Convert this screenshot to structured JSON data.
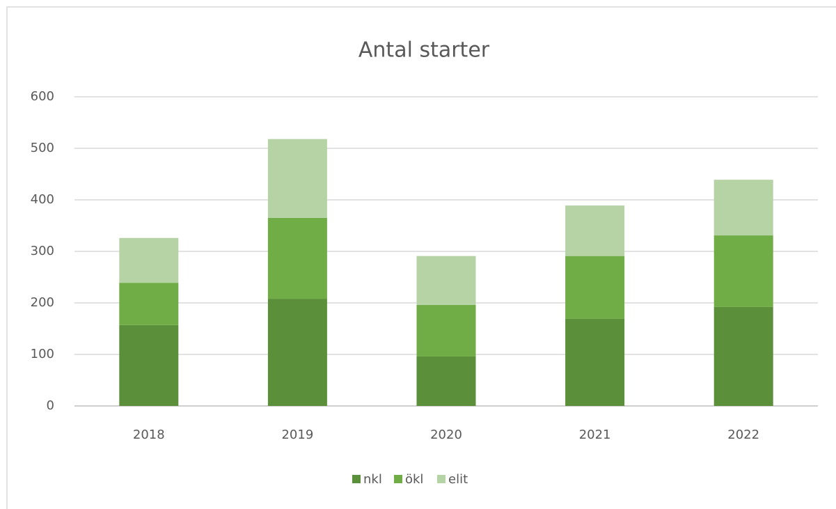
{
  "chart_data": {
    "type": "bar",
    "stacked": true,
    "title": "Antal starter",
    "categories": [
      "2018",
      "2019",
      "2020",
      "2021",
      "2022"
    ],
    "series": [
      {
        "name": "nkl",
        "color": "#5b8f3a",
        "values": [
          157,
          208,
          96,
          169,
          192
        ]
      },
      {
        "name": "ökl",
        "color": "#70ad47",
        "values": [
          82,
          157,
          100,
          122,
          139
        ]
      },
      {
        "name": "elit",
        "color": "#b6d3a6",
        "values": [
          87,
          153,
          95,
          98,
          108
        ]
      }
    ],
    "ylim": [
      0,
      600
    ],
    "yticks": [
      0,
      100,
      200,
      300,
      400,
      500,
      600
    ],
    "grid": true,
    "legend": "bottom"
  }
}
